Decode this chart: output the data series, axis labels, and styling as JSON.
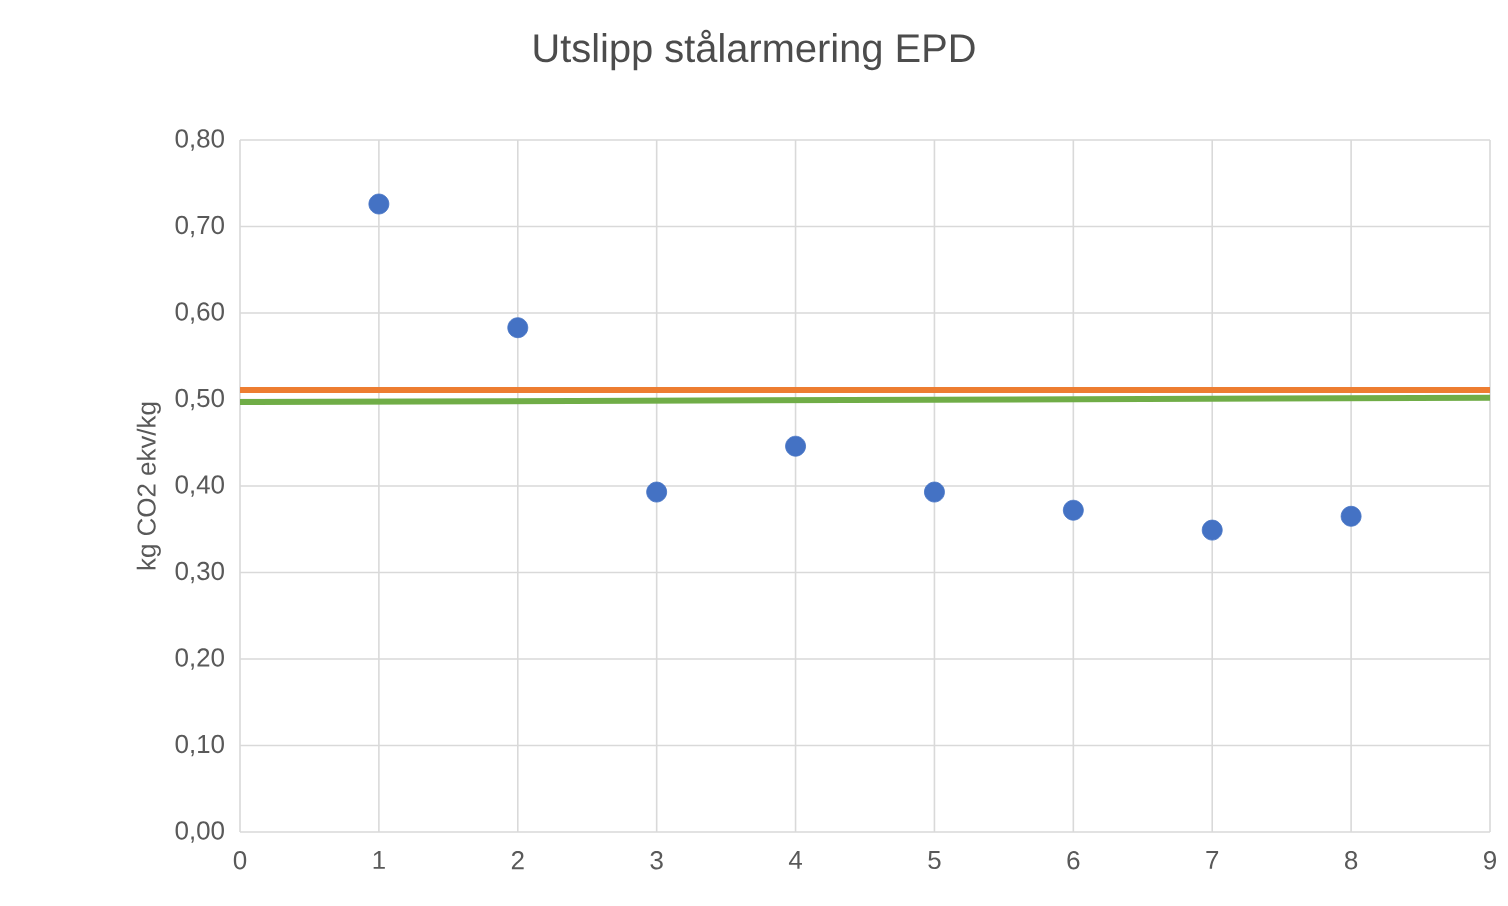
{
  "chart_data": {
    "type": "scatter",
    "title": "Utslipp stålarmering EPD",
    "ylabel": "kg CO2 ekv/kg",
    "xlim": [
      0,
      9
    ],
    "ylim": [
      0,
      0.8
    ],
    "xticks": [
      0,
      1,
      2,
      3,
      4,
      5,
      6,
      7,
      8,
      9
    ],
    "yticks": [
      {
        "value": 0,
        "label": "0,00"
      },
      {
        "value": 0.1,
        "label": "0,10"
      },
      {
        "value": 0.2,
        "label": "0,20"
      },
      {
        "value": 0.3,
        "label": "0,30"
      },
      {
        "value": 0.4,
        "label": "0,40"
      },
      {
        "value": 0.5,
        "label": "0,50"
      },
      {
        "value": 0.6,
        "label": "0,60"
      },
      {
        "value": 0.7,
        "label": "0,70"
      },
      {
        "value": 0.8,
        "label": "0,80"
      }
    ],
    "grid": true,
    "series": [
      {
        "marker": "circle",
        "color": "#4472c4",
        "x": [
          1,
          2,
          3,
          4,
          5,
          6,
          7,
          8
        ],
        "values": [
          0.726,
          0.583,
          0.393,
          0.446,
          0.393,
          0.372,
          0.349,
          0.365
        ]
      },
      {
        "type": "line",
        "marker": "none",
        "color": "#ed7d31",
        "x": [
          0,
          9
        ],
        "values": [
          0.511,
          0.511
        ]
      },
      {
        "type": "line",
        "marker": "none",
        "color": "#70ad47",
        "x": [
          0,
          9
        ],
        "values": [
          0.497,
          0.502
        ]
      }
    ]
  }
}
